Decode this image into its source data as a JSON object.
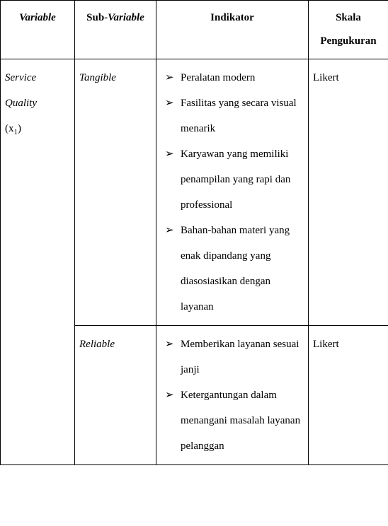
{
  "headers": {
    "variable": "Variable",
    "sub_variable_prefix": "Sub-",
    "sub_variable_word": "Variable",
    "indikator": "Indikator",
    "skala_line1": "Skala",
    "skala_line2": "Pengukuran"
  },
  "variable": {
    "line1": "Service",
    "line2": "Quality",
    "symbol_open": "(x",
    "symbol_sub": "1",
    "symbol_close": ")"
  },
  "rows": [
    {
      "sub_variable": "Tangible",
      "skala": "Likert",
      "indicators": [
        "Peralatan modern",
        "Fasilitas yang secara visual menarik",
        "Karyawan yang memiliki penampilan yang rapi dan professional",
        "Bahan-bahan materi yang enak dipandang yang diasosiasikan dengan layanan"
      ]
    },
    {
      "sub_variable": "Reliable",
      "skala": "Likert",
      "indicators": [
        "Memberikan layanan sesuai janji",
        "Ketergantungan dalam menangani masalah layanan pelanggan"
      ]
    }
  ]
}
